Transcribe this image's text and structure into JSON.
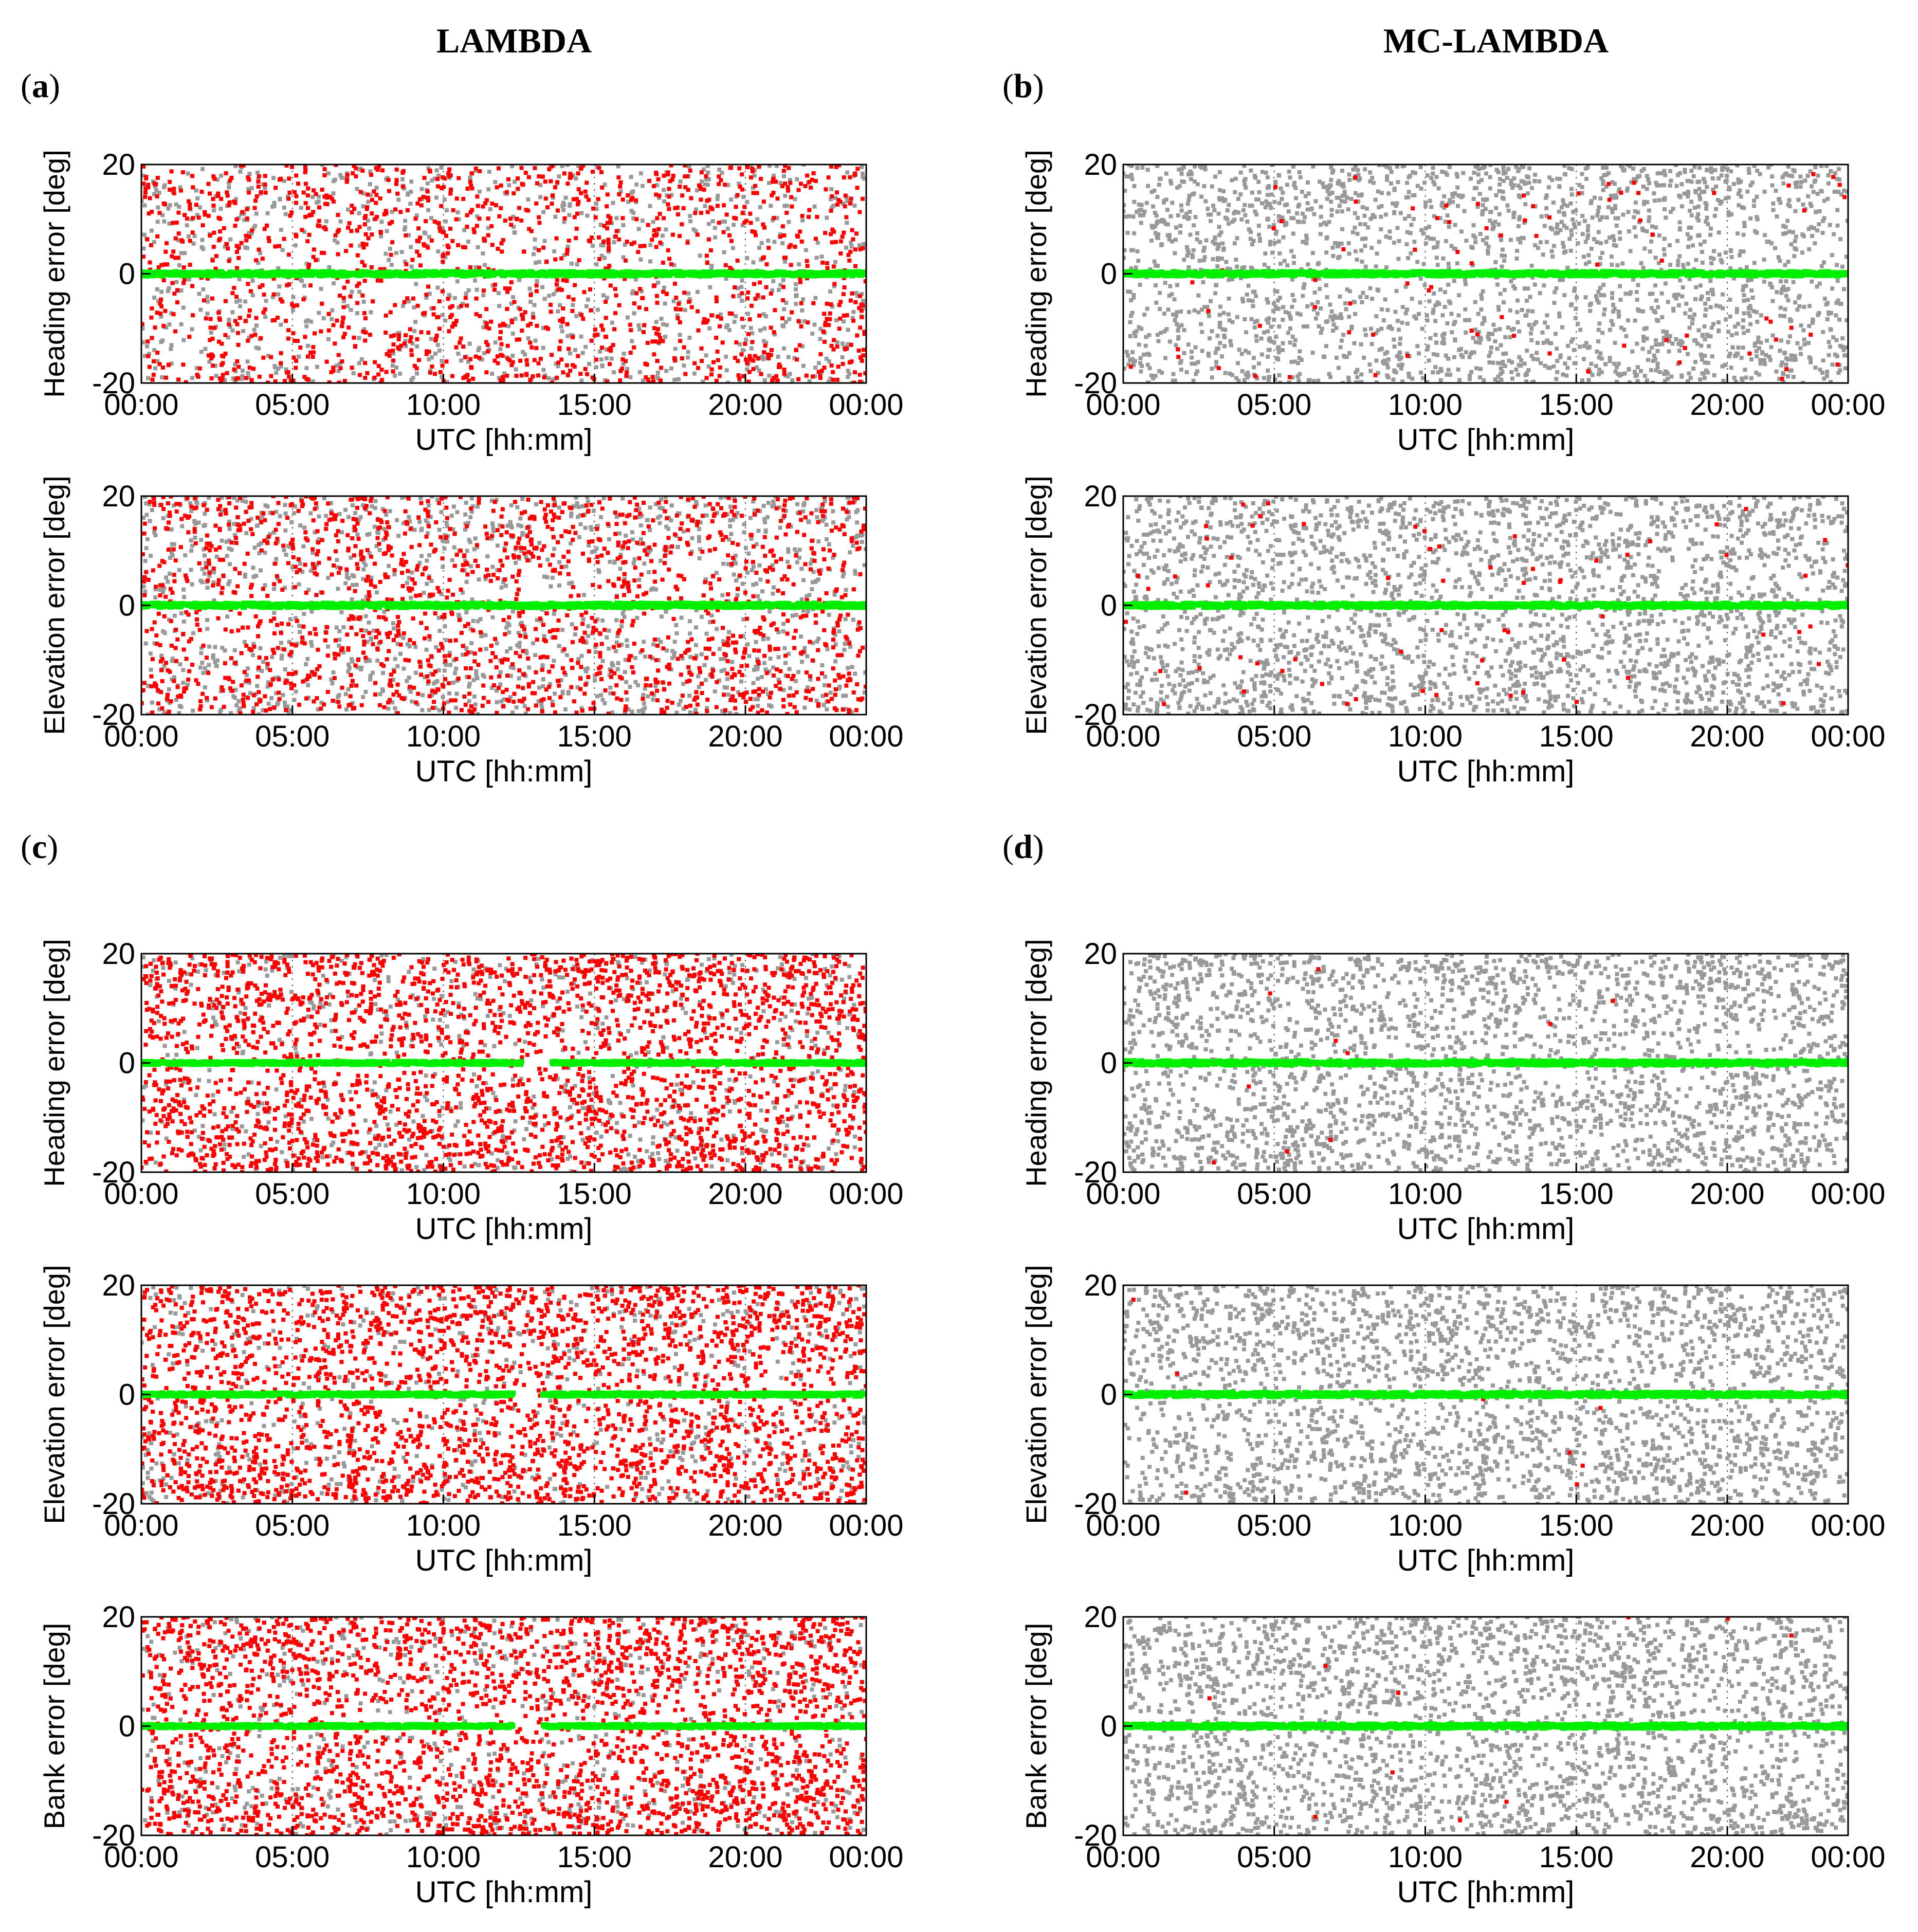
{
  "column_titles": {
    "left": "LAMBDA",
    "right": "MC-LAMBDA"
  },
  "panel_labels": {
    "a": "a",
    "b": "b",
    "c": "c",
    "d": "d"
  },
  "legend_colors": {
    "float_solution": "#999999",
    "wrong_fix": "#ff0000",
    "correct_fix": "#00ee00"
  },
  "axis_common": {
    "xlabel": "UTC [hh:mm]",
    "x_ticks": [
      "00:00",
      "05:00",
      "10:00",
      "15:00",
      "20:00",
      "00:00"
    ],
    "y_ticks": [
      "20",
      "0",
      "-20"
    ],
    "ylim": [
      -20,
      20
    ],
    "xlim_hours": [
      0,
      24
    ]
  },
  "chart_data": [
    {
      "id": "a1",
      "panel": "a",
      "method": "LAMBDA",
      "type": "scatter",
      "ylabel": "Heading error [deg]",
      "xlabel": "UTC [hh:mm]",
      "ylim": [
        -20,
        20
      ],
      "xlim_hours": [
        0,
        24
      ],
      "series": [
        {
          "name": "float",
          "color": "#999999",
          "density": 0.35,
          "spread_deg": 20
        },
        {
          "name": "wrong_fix",
          "color": "#ff0000",
          "density": 0.55,
          "spread_deg": 20
        },
        {
          "name": "correct_fix",
          "color": "#00ee00",
          "y_deg": 0,
          "spread_deg": 0.4
        }
      ]
    },
    {
      "id": "a2",
      "panel": "a",
      "method": "LAMBDA",
      "type": "scatter",
      "ylabel": "Elevation error [deg]",
      "xlabel": "UTC [hh:mm]",
      "ylim": [
        -20,
        20
      ],
      "xlim_hours": [
        0,
        24
      ],
      "series": [
        {
          "name": "float",
          "color": "#999999",
          "density": 0.5,
          "spread_deg": 20
        },
        {
          "name": "wrong_fix",
          "color": "#ff0000",
          "density": 0.6,
          "spread_deg": 20
        },
        {
          "name": "correct_fix",
          "color": "#00ee00",
          "y_deg": 0,
          "spread_deg": 0.4
        }
      ]
    },
    {
      "id": "b1",
      "panel": "b",
      "method": "MC-LAMBDA",
      "type": "scatter",
      "ylabel": "Heading error [deg]",
      "xlabel": "UTC [hh:mm]",
      "ylim": [
        -20,
        20
      ],
      "xlim_hours": [
        0,
        24
      ],
      "series": [
        {
          "name": "float",
          "color": "#999999",
          "density": 0.9,
          "spread_deg": 20
        },
        {
          "name": "wrong_fix",
          "color": "#ff0000",
          "density": 0.03,
          "spread_deg": 20
        },
        {
          "name": "correct_fix",
          "color": "#00ee00",
          "y_deg": 0,
          "spread_deg": 0.4
        }
      ]
    },
    {
      "id": "b2",
      "panel": "b",
      "method": "MC-LAMBDA",
      "type": "scatter",
      "ylabel": "Elevation error [deg]",
      "xlabel": "UTC [hh:mm]",
      "ylim": [
        -20,
        20
      ],
      "xlim_hours": [
        0,
        24
      ],
      "series": [
        {
          "name": "float",
          "color": "#999999",
          "density": 0.95,
          "spread_deg": 20
        },
        {
          "name": "wrong_fix",
          "color": "#ff0000",
          "density": 0.025,
          "spread_deg": 20
        },
        {
          "name": "correct_fix",
          "color": "#00ee00",
          "y_deg": 0,
          "spread_deg": 0.4
        }
      ]
    },
    {
      "id": "c1",
      "panel": "c",
      "method": "LAMBDA",
      "type": "scatter",
      "ylabel": "Heading error [deg]",
      "xlabel": "UTC [hh:mm]",
      "ylim": [
        -20,
        20
      ],
      "xlim_hours": [
        0,
        24
      ],
      "series": [
        {
          "name": "float",
          "color": "#999999",
          "density": 0.25,
          "spread_deg": 20
        },
        {
          "name": "wrong_fix",
          "color": "#ff0000",
          "density": 0.95,
          "spread_deg": 20
        },
        {
          "name": "correct_fix",
          "color": "#00ee00",
          "y_deg": 0,
          "spread_deg": 0.3,
          "gaps_hours": [
            [
              12.6,
              13.6
            ]
          ]
        }
      ]
    },
    {
      "id": "c2",
      "panel": "c",
      "method": "LAMBDA",
      "type": "scatter",
      "ylabel": "Elevation error [deg]",
      "xlabel": "UTC [hh:mm]",
      "ylim": [
        -20,
        20
      ],
      "xlim_hours": [
        0,
        24
      ],
      "series": [
        {
          "name": "float",
          "color": "#999999",
          "density": 0.25,
          "spread_deg": 20
        },
        {
          "name": "wrong_fix",
          "color": "#ff0000",
          "density": 0.95,
          "spread_deg": 20
        },
        {
          "name": "correct_fix",
          "color": "#00ee00",
          "y_deg": 0,
          "spread_deg": 0.3,
          "gaps_hours": [
            [
              12.3,
              13.3
            ]
          ]
        }
      ]
    },
    {
      "id": "c3",
      "panel": "c",
      "method": "LAMBDA",
      "type": "scatter",
      "ylabel": "Bank error [deg]",
      "xlabel": "UTC [hh:mm]",
      "ylim": [
        -20,
        20
      ],
      "xlim_hours": [
        0,
        24
      ],
      "series": [
        {
          "name": "float",
          "color": "#999999",
          "density": 0.25,
          "spread_deg": 20
        },
        {
          "name": "wrong_fix",
          "color": "#ff0000",
          "density": 0.95,
          "spread_deg": 20
        },
        {
          "name": "correct_fix",
          "color": "#00ee00",
          "y_deg": 0,
          "spread_deg": 0.3,
          "gaps_hours": [
            [
              12.3,
              13.3
            ]
          ]
        }
      ]
    },
    {
      "id": "d1",
      "panel": "d",
      "method": "MC-LAMBDA",
      "type": "scatter",
      "ylabel": "Heading error [deg]",
      "xlabel": "UTC [hh:mm]",
      "ylim": [
        -20,
        20
      ],
      "xlim_hours": [
        0,
        24
      ],
      "series": [
        {
          "name": "float",
          "color": "#999999",
          "density": 0.95,
          "spread_deg": 20
        },
        {
          "name": "wrong_fix",
          "color": "#ff0000",
          "density": 0.004,
          "spread_deg": 20
        },
        {
          "name": "correct_fix",
          "color": "#00ee00",
          "y_deg": 0,
          "spread_deg": 0.4
        }
      ]
    },
    {
      "id": "d2",
      "panel": "d",
      "method": "MC-LAMBDA",
      "type": "scatter",
      "ylabel": "Elevation error [deg]",
      "xlabel": "UTC [hh:mm]",
      "ylim": [
        -20,
        20
      ],
      "xlim_hours": [
        0,
        24
      ],
      "series": [
        {
          "name": "float",
          "color": "#999999",
          "density": 0.95,
          "spread_deg": 20
        },
        {
          "name": "wrong_fix",
          "color": "#ff0000",
          "density": 0.003,
          "spread_deg": 20
        },
        {
          "name": "correct_fix",
          "color": "#00ee00",
          "y_deg": 0,
          "spread_deg": 0.4
        }
      ]
    },
    {
      "id": "d3",
      "panel": "d",
      "method": "MC-LAMBDA",
      "type": "scatter",
      "ylabel": "Bank error [deg]",
      "xlabel": "UTC [hh:mm]",
      "ylim": [
        -20,
        20
      ],
      "xlim_hours": [
        0,
        24
      ],
      "series": [
        {
          "name": "float",
          "color": "#999999",
          "density": 0.95,
          "spread_deg": 20
        },
        {
          "name": "wrong_fix",
          "color": "#ff0000",
          "density": 0.004,
          "spread_deg": 20
        },
        {
          "name": "correct_fix",
          "color": "#00ee00",
          "y_deg": 0,
          "spread_deg": 0.4
        }
      ]
    }
  ]
}
